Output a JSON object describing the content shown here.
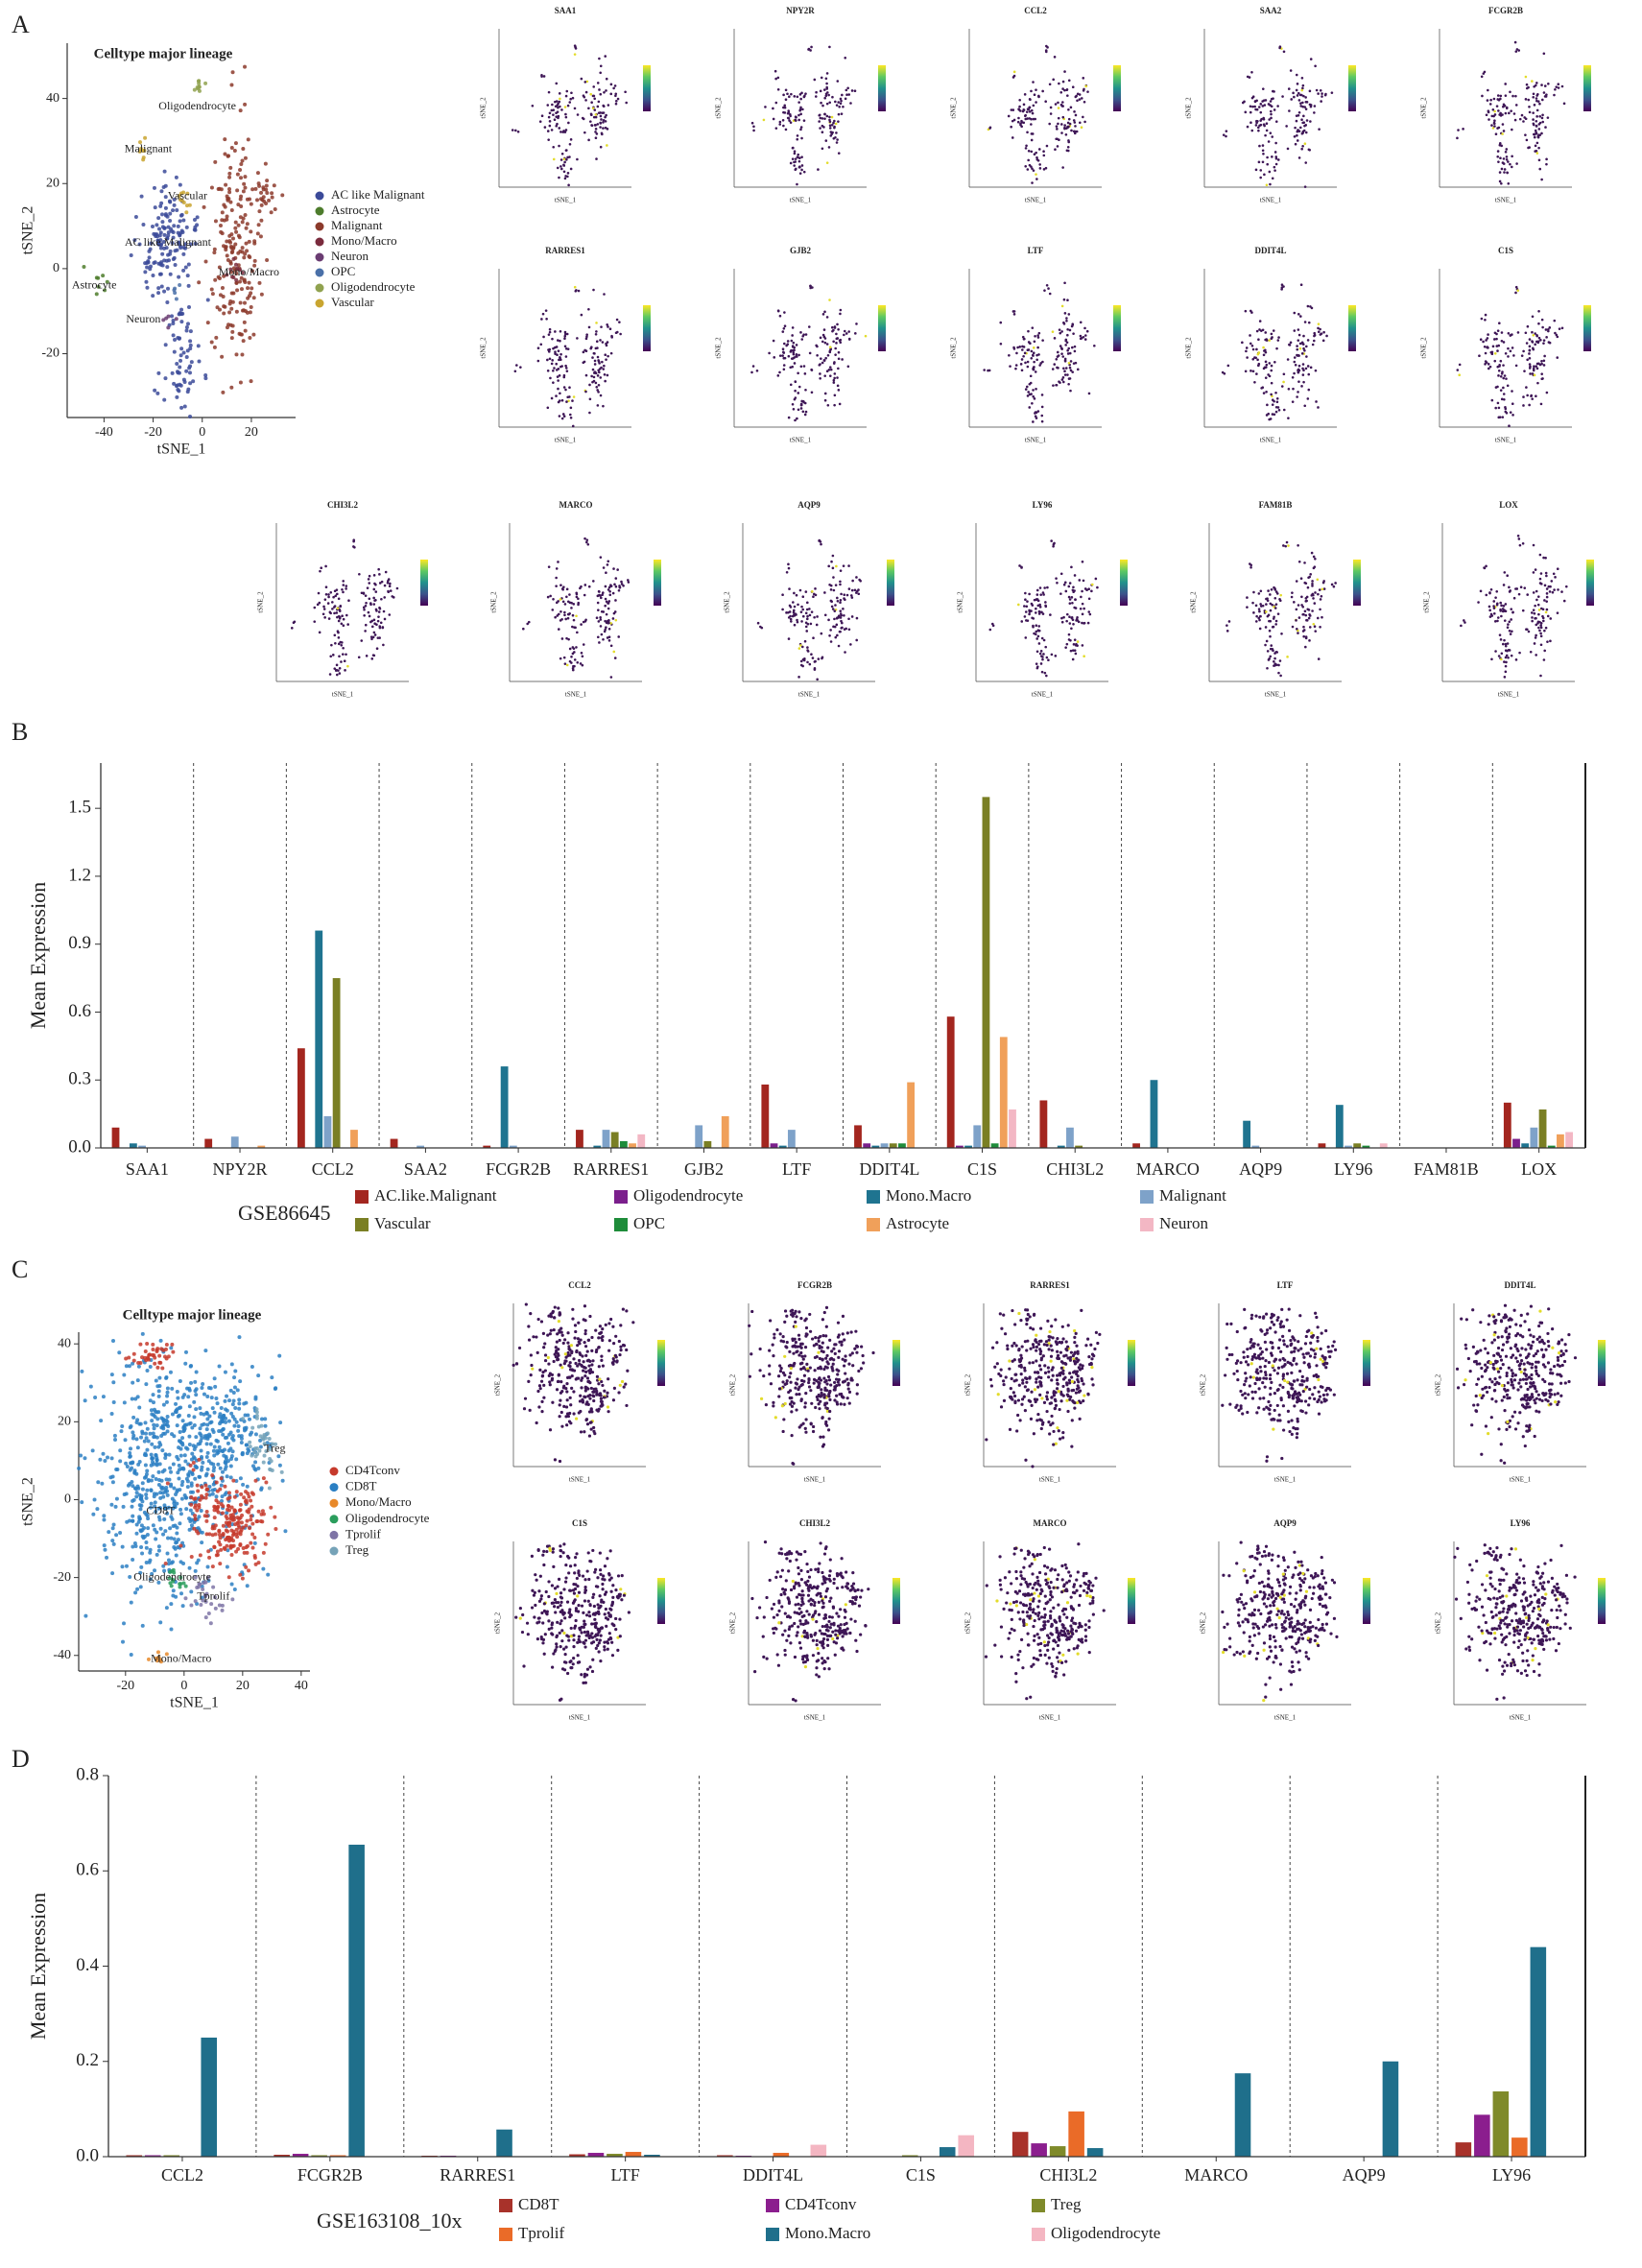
{
  "panels": [
    "A",
    "B",
    "C",
    "D"
  ],
  "chart_data": [
    {
      "type": "scatter",
      "title": "Celltype major lineage",
      "xlabel": "tSNE_1",
      "ylabel": "tSNE_2",
      "xlim": [
        -55,
        38
      ],
      "ylim": [
        -35,
        53
      ],
      "xticks": [
        -40,
        -20,
        0,
        20
      ],
      "yticks": [
        -20,
        0,
        20,
        40
      ],
      "series": [
        {
          "name": "AC like Malignant",
          "color": "#3b4a99"
        },
        {
          "name": "Astrocyte",
          "color": "#4d7c2c"
        },
        {
          "name": "Malignant",
          "color": "#8c3a2b"
        },
        {
          "name": "Mono/Macro",
          "color": "#7a2b3d"
        },
        {
          "name": "Neuron",
          "color": "#6a3c72"
        },
        {
          "name": "OPC",
          "color": "#4a70a8"
        },
        {
          "name": "Oligodendrocyte",
          "color": "#90a24f"
        },
        {
          "name": "Vascular",
          "color": "#c9a530"
        }
      ],
      "annotations": [
        "Oligodendrocyte",
        "Malignant",
        "Vascular",
        "AC like Malignant",
        "Mono/Macro",
        "Astrocyte",
        "Neuron"
      ],
      "feature_genes": [
        "SAA1",
        "NPY2R",
        "CCL2",
        "SAA2",
        "FCGR2B",
        "RARRES1",
        "GJB2",
        "LTF",
        "DDIT4L",
        "C1S",
        "CHI3L2",
        "MARCO",
        "AQP9",
        "LY96",
        "FAM81B",
        "LOX"
      ]
    },
    {
      "type": "bar",
      "ylabel": "Mean Expression",
      "dataset": "GSE86645",
      "categories": [
        "SAA1",
        "NPY2R",
        "CCL2",
        "SAA2",
        "FCGR2B",
        "RARRES1",
        "GJB2",
        "LTF",
        "DDIT4L",
        "C1S",
        "CHI3L2",
        "MARCO",
        "AQP9",
        "LY96",
        "FAM81B",
        "LOX"
      ],
      "ylim": [
        0,
        1.7
      ],
      "yticks": [
        {
          "value": 0,
          "label": "0.0"
        },
        0.3,
        0.6,
        0.9,
        1.2,
        1.5
      ],
      "series": [
        {
          "name": "AC.like.Malignant",
          "color": "#a3261f",
          "values": [
            0.09,
            0.04,
            0.44,
            0.04,
            0.01,
            0.08,
            0,
            0.28,
            0.1,
            0.58,
            0.21,
            0.02,
            0,
            0.02,
            0,
            0.2
          ]
        },
        {
          "name": "Oligodendrocyte",
          "color": "#7b1f8c",
          "values": [
            0,
            0,
            0,
            0,
            0,
            0,
            0,
            0.02,
            0.02,
            0.01,
            0,
            0,
            0,
            0,
            0,
            0.04
          ]
        },
        {
          "name": "Mono.Macro",
          "color": "#1f7490",
          "values": [
            0.02,
            0,
            0.96,
            0,
            0.36,
            0.01,
            0,
            0.01,
            0.01,
            0.01,
            0.01,
            0.3,
            0.12,
            0.19,
            0,
            0.02
          ]
        },
        {
          "name": "Malignant",
          "color": "#7ea2c9",
          "values": [
            0.01,
            0.05,
            0.14,
            0.01,
            0.01,
            0.08,
            0.1,
            0.08,
            0.02,
            0.1,
            0.09,
            0,
            0.01,
            0.01,
            0,
            0.09
          ]
        },
        {
          "name": "Vascular",
          "color": "#7a7f24",
          "values": [
            0,
            0,
            0.75,
            0,
            0,
            0.07,
            0.03,
            0,
            0.02,
            1.55,
            0.01,
            0,
            0,
            0.02,
            0,
            0.17
          ]
        },
        {
          "name": "OPC",
          "color": "#1e8c3a",
          "values": [
            0,
            0,
            0,
            0,
            0,
            0.03,
            0,
            0,
            0.02,
            0.02,
            0,
            0,
            0,
            0.01,
            0,
            0.01
          ]
        },
        {
          "name": "Astrocyte",
          "color": "#f0a05a",
          "values": [
            0,
            0.01,
            0.08,
            0,
            0,
            0.02,
            0.14,
            0,
            0.29,
            0.49,
            0,
            0,
            0,
            0,
            0,
            0.06
          ]
        },
        {
          "name": "Neuron",
          "color": "#f3b7c4",
          "values": [
            0,
            0,
            0,
            0,
            0,
            0.06,
            0,
            0,
            0,
            0.17,
            0,
            0,
            0,
            0.02,
            0,
            0.07
          ]
        }
      ]
    },
    {
      "type": "scatter",
      "title": "Celltype major lineage",
      "xlabel": "tSNE_1",
      "ylabel": "tSNE_2",
      "xlim": [
        -36,
        43
      ],
      "ylim": [
        -44,
        43
      ],
      "xticks": [
        -20,
        0,
        20,
        40
      ],
      "yticks": [
        -40,
        -20,
        0,
        20,
        40
      ],
      "series": [
        {
          "name": "CD4Tconv",
          "color": "#c63a2c"
        },
        {
          "name": "CD8T",
          "color": "#2b7fc3"
        },
        {
          "name": "Mono/Macro",
          "color": "#e8892a"
        },
        {
          "name": "Oligodendrocyte",
          "color": "#2a9d5c"
        },
        {
          "name": "Tprolif",
          "color": "#7e74a6"
        },
        {
          "name": "Treg",
          "color": "#76a3b8"
        }
      ],
      "annotations": [
        "Treg",
        "CD8T",
        "Oligodendrocyte",
        "Tprolif",
        "Mono/Macro"
      ],
      "feature_genes": [
        "CCL2",
        "FCGR2B",
        "RARRES1",
        "LTF",
        "DDIT4L",
        "C1S",
        "CHI3L2",
        "MARCO",
        "AQP9",
        "LY96"
      ]
    },
    {
      "type": "bar",
      "ylabel": "Mean Expression",
      "dataset": "GSE163108_10x",
      "categories": [
        "CCL2",
        "FCGR2B",
        "RARRES1",
        "LTF",
        "DDIT4L",
        "C1S",
        "CHI3L2",
        "MARCO",
        "AQP9",
        "LY96"
      ],
      "ylim": [
        0,
        0.8
      ],
      "yticks": [
        {
          "value": 0,
          "label": "0.0"
        },
        0.2,
        0.4,
        0.6,
        0.8
      ],
      "series": [
        {
          "name": "CD8T",
          "color": "#a8322a",
          "values": [
            0.003,
            0.004,
            0.002,
            0.005,
            0.003,
            0,
            0.052,
            0,
            0,
            0.03
          ]
        },
        {
          "name": "CD4Tconv",
          "color": "#8b1e8e",
          "values": [
            0.003,
            0.006,
            0.002,
            0.008,
            0.002,
            0,
            0.028,
            0,
            0,
            0.088
          ]
        },
        {
          "name": "Treg",
          "color": "#7f8a2a",
          "values": [
            0.003,
            0.003,
            0,
            0.006,
            0,
            0.003,
            0.022,
            0,
            0,
            0.137
          ]
        },
        {
          "name": "Tprolif",
          "color": "#ea6b28",
          "values": [
            0,
            0.003,
            0,
            0.01,
            0.008,
            0,
            0.095,
            0,
            0,
            0.04
          ]
        },
        {
          "name": "Mono.Macro",
          "color": "#1f6f8b",
          "values": [
            0.25,
            0.655,
            0.057,
            0.004,
            0,
            0.02,
            0.018,
            0.175,
            0.2,
            0.44
          ]
        },
        {
          "name": "Oligodendrocyte",
          "color": "#f4b6c2",
          "values": [
            0,
            0,
            0,
            0,
            0.025,
            0.045,
            0,
            0,
            0,
            0
          ]
        }
      ]
    }
  ]
}
